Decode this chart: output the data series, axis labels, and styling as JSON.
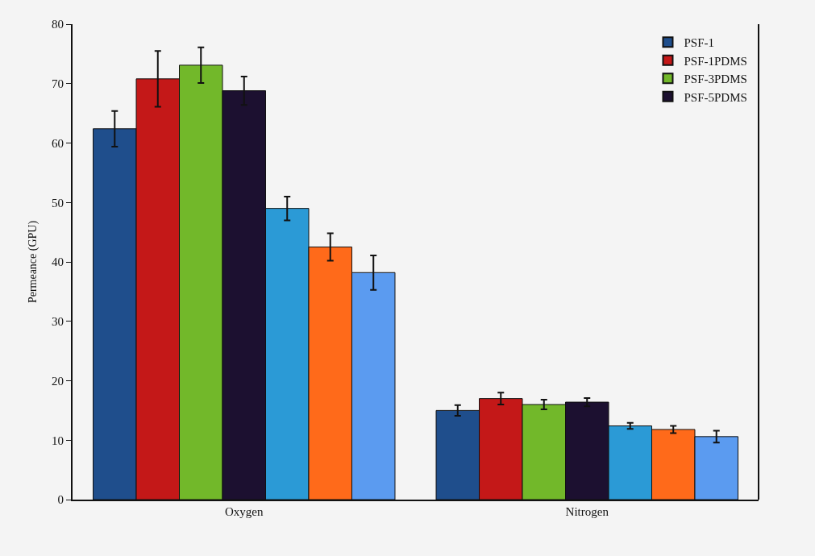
{
  "chart_data": {
    "type": "bar",
    "ylabel": "Permeance (GPU)",
    "categories": [
      "Oxygen",
      "Nitrogen"
    ],
    "series": [
      {
        "name": "PSF-1",
        "color": "#1f4e8c",
        "values": [
          62.4,
          15.0
        ],
        "errors": [
          3.0,
          0.9
        ]
      },
      {
        "name": "PSF-1PDMS",
        "color": "#c41818",
        "values": [
          70.8,
          17.0
        ],
        "errors": [
          4.7,
          1.0
        ]
      },
      {
        "name": "PSF-3PDMS",
        "color": "#72b82a",
        "values": [
          73.1,
          16.0
        ],
        "errors": [
          3.0,
          0.8
        ]
      },
      {
        "name": "PSF-5PDMS",
        "color": "#1c1030",
        "values": [
          68.8,
          16.4
        ],
        "errors": [
          2.4,
          0.7
        ]
      },
      {
        "color": "#2b9ad6",
        "values": [
          49.0,
          12.4
        ],
        "errors": [
          2.0,
          0.5
        ]
      },
      {
        "color": "#ff6a1a",
        "values": [
          42.5,
          11.8
        ],
        "errors": [
          2.3,
          0.6
        ]
      },
      {
        "color": "#5b9bf0",
        "values": [
          38.2,
          10.6
        ],
        "errors": [
          2.9,
          1.0
        ]
      }
    ],
    "ylim": [
      0,
      80
    ],
    "yticks": [
      0,
      10,
      20,
      30,
      40,
      50,
      60,
      70,
      80
    ],
    "grid": false,
    "legend": "top right"
  }
}
